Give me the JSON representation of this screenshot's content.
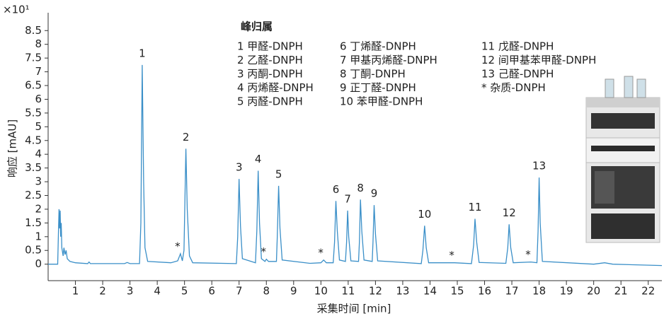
{
  "chart_data": {
    "type": "line",
    "y_multiplier": "×10¹",
    "y_label": "响应 [mAU]",
    "x_label": "采集时间 [min]",
    "color": "#3a8fc8",
    "xlim": [
      0,
      22.5
    ],
    "ylim": [
      -0.6,
      9.15
    ],
    "xticks": [
      1,
      2,
      3,
      4,
      5,
      6,
      7,
      8,
      9,
      10,
      11,
      12,
      13,
      14,
      15,
      16,
      17,
      18,
      19,
      20,
      21,
      22
    ],
    "yticks": [
      0,
      0.5,
      1,
      1.5,
      2,
      2.5,
      3,
      3.5,
      4,
      4.5,
      5,
      5.5,
      6,
      6.5,
      7,
      7.5,
      8,
      8.5
    ],
    "x": [
      0.0,
      0.35,
      0.38,
      0.4,
      0.42,
      0.44,
      0.46,
      0.48,
      0.5,
      0.55,
      0.58,
      0.62,
      0.66,
      0.7,
      0.8,
      1.0,
      1.45,
      1.5,
      1.55,
      2.8,
      2.9,
      3.0,
      3.35,
      3.4,
      3.45,
      3.5,
      3.55,
      3.65,
      4.5,
      4.75,
      4.85,
      4.92,
      4.98,
      5.05,
      5.1,
      5.18,
      5.3,
      6.9,
      6.95,
      7.0,
      7.05,
      7.12,
      7.6,
      7.65,
      7.7,
      7.75,
      7.82,
      7.95,
      8.0,
      8.08,
      8.37,
      8.4,
      8.45,
      8.5,
      8.58,
      9.6,
      10.0,
      10.1,
      10.2,
      10.45,
      10.5,
      10.55,
      10.6,
      10.68,
      10.9,
      10.94,
      10.98,
      11.02,
      11.1,
      11.38,
      11.41,
      11.45,
      11.5,
      11.58,
      11.88,
      11.91,
      11.95,
      12.0,
      12.08,
      13.68,
      13.74,
      13.8,
      13.86,
      13.95,
      14.9,
      15.52,
      15.6,
      15.65,
      15.71,
      15.8,
      16.78,
      16.85,
      16.9,
      16.96,
      17.05,
      17.7,
      17.92,
      17.96,
      18.0,
      18.04,
      18.12,
      20.0,
      20.4,
      20.7,
      22.5
    ],
    "values": [
      0,
      0,
      1.2,
      2.0,
      1.3,
      1.95,
      1.0,
      1.5,
      0.6,
      0.3,
      0.6,
      0.35,
      0.5,
      0.2,
      0.1,
      0.05,
      0.02,
      0.08,
      0.02,
      0.02,
      0.06,
      0.02,
      0.02,
      1.5,
      7.25,
      3.0,
      0.6,
      0.1,
      0.05,
      0.12,
      0.38,
      0.12,
      0.5,
      4.2,
      2.0,
      0.3,
      0.05,
      0.02,
      1.0,
      3.1,
      1.4,
      0.2,
      0.05,
      1.2,
      3.4,
      1.5,
      0.2,
      0.1,
      0.18,
      0.1,
      0.1,
      1.0,
      2.85,
      1.3,
      0.15,
      0.03,
      0.05,
      0.15,
      0.05,
      0.05,
      0.8,
      2.3,
      1.2,
      0.15,
      0.1,
      0.8,
      1.95,
      1.0,
      0.12,
      0.1,
      0.8,
      2.35,
      1.2,
      0.15,
      0.1,
      0.8,
      2.15,
      1.1,
      0.12,
      0.02,
      0.5,
      1.4,
      0.6,
      0.05,
      0.05,
      0.02,
      0.7,
      1.65,
      0.8,
      0.06,
      0.03,
      0.6,
      1.45,
      0.6,
      0.05,
      0.08,
      0.05,
      1.2,
      3.15,
      1.5,
      0.1,
      0.0,
      0.05,
      0.0,
      -0.05
    ],
    "annotations": [
      {
        "text": "1",
        "x": 3.45
      },
      {
        "text": "2",
        "x": 5.05
      },
      {
        "text": "3",
        "x": 7.0
      },
      {
        "text": "4",
        "x": 7.7
      },
      {
        "text": "5",
        "x": 8.45
      },
      {
        "text": "6",
        "x": 10.55
      },
      {
        "text": "7",
        "x": 10.98
      },
      {
        "text": "8",
        "x": 11.45
      },
      {
        "text": "9",
        "x": 11.95
      },
      {
        "text": "10",
        "x": 13.8
      },
      {
        "text": "11",
        "x": 15.65
      },
      {
        "text": "12",
        "x": 16.9
      },
      {
        "text": "13",
        "x": 18.0
      },
      {
        "text": "*",
        "x": 4.85
      },
      {
        "text": "*",
        "x": 8.0
      },
      {
        "text": "*",
        "x": 10.1
      },
      {
        "text": "*",
        "x": 14.9
      },
      {
        "text": "*",
        "x": 17.7
      }
    ],
    "peak_legend": {
      "title": "峰归属",
      "items": [
        "1 甲醛-DNPH",
        "2 乙醛-DNPH",
        "3 丙酮-DNPH",
        "4 丙烯醛-DNPH",
        "5 丙醛-DNPH",
        "6 丁烯醛-DNPH",
        "7 甲基丙烯醛-DNPH",
        "8 丁酮-DNPH",
        "9 正丁醛-DNPH",
        "10 苯甲醛-DNPH",
        "11 戊醛-DNPH",
        "12 间甲基苯甲醛-DNPH",
        "13 己醛-DNPH",
        "*  杂质-DNPH"
      ]
    }
  }
}
